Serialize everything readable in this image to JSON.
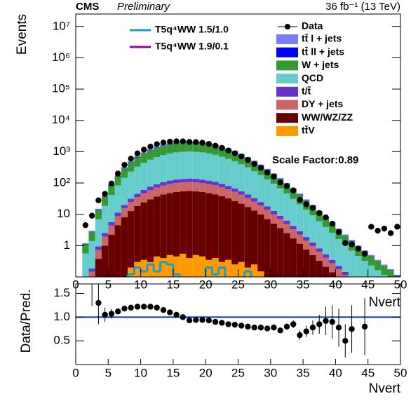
{
  "chart_data": [
    {
      "type": "stacked_histogram",
      "cms": "CMS",
      "preliminary": "Preliminary",
      "lumi": "36 fb⁻¹ (13 TeV)",
      "y_label": "Events",
      "x_label": "Nvert",
      "annotation": "Scale Factor:0.89",
      "log_scale": true,
      "bins": [
        0,
        1,
        2,
        3,
        4,
        5,
        6,
        7,
        8,
        9,
        10,
        11,
        12,
        13,
        14,
        15,
        16,
        17,
        18,
        19,
        20,
        21,
        22,
        23,
        24,
        25,
        26,
        27,
        28,
        29,
        30,
        31,
        32,
        33,
        34,
        35,
        36,
        37,
        38,
        39,
        40,
        41,
        42,
        43,
        44,
        45,
        46,
        47,
        48,
        49,
        50
      ],
      "xlim": [
        0,
        50
      ],
      "xticks": [
        0,
        5,
        10,
        15,
        20,
        25,
        30,
        35,
        40,
        45,
        50
      ],
      "ylim": [
        0.1,
        25000000
      ],
      "yticks": [
        1,
        10,
        {
          "value": 100,
          "label": "10²"
        },
        {
          "value": 1000,
          "label": "10³"
        },
        {
          "value": 10000,
          "label": "10⁴"
        },
        {
          "value": 100000,
          "label": "10⁵"
        },
        {
          "value": 1000000,
          "label": "10⁶"
        },
        {
          "value": 10000000,
          "label": "10⁷"
        }
      ],
      "series": [
        {
          "name": "tt̄ l + jets",
          "color": "#7b7bff",
          "values": [
            0,
            0.07,
            0.18,
            0.9,
            2.4,
            5.4,
            10.8,
            19.2,
            30,
            43.2,
            57,
            72,
            87,
            102,
            114,
            123,
            129,
            132,
            129,
            123,
            114,
            103,
            90,
            77,
            64,
            52,
            41,
            31,
            23,
            17,
            12.3,
            8.7,
            6,
            4.1,
            2.8,
            1.8,
            1.2,
            0.78,
            0.51,
            0.33,
            0.21,
            0.14,
            0.09,
            0.06,
            0.04,
            0.03,
            0.02,
            0.015,
            0.01,
            0.007
          ]
        },
        {
          "name": "tt̄ ll + jets",
          "color": "#0000ff",
          "values": [
            0,
            0.03,
            0.075,
            0.38,
            1,
            2.25,
            4.5,
            8,
            12.5,
            18,
            23.8,
            30,
            36.3,
            42.5,
            47.5,
            51.3,
            53.8,
            55,
            53.8,
            51.3,
            47.5,
            43,
            37.5,
            32,
            26.5,
            21.5,
            17,
            13,
            9.8,
            7.1,
            5.1,
            3.6,
            2.5,
            1.7,
            1.15,
            0.75,
            0.5,
            0.33,
            0.21,
            0.14,
            0.09,
            0.06,
            0.04,
            0.025,
            0.018,
            0.013,
            0.009,
            0.006,
            0.005,
            0.003
          ]
        },
        {
          "name": "W + jets",
          "color": "#339933",
          "values": [
            0,
            0.54,
            1.35,
            6.8,
            18,
            40,
            81,
            144,
            225,
            324,
            428,
            540,
            653,
            765,
            855,
            923,
            968,
            990,
            968,
            923,
            855,
            774,
            675,
            576,
            477,
            387,
            306,
            234,
            176,
            128,
            92,
            65,
            45,
            31,
            21,
            13.5,
            9,
            5.9,
            3.8,
            2.5,
            1.6,
            1.0,
            0.68,
            0.45,
            0.32,
            0.23,
            0.16,
            0.11,
            0.08,
            0.05
          ]
        },
        {
          "name": "QCD",
          "color": "#66cccc",
          "values": [
            0,
            0.48,
            1.2,
            6,
            16,
            36,
            72,
            128,
            200,
            288,
            380,
            480,
            580,
            680,
            760,
            820,
            860,
            880,
            860,
            820,
            760,
            688,
            600,
            512,
            424,
            344,
            272,
            208,
            156,
            114,
            82,
            58,
            40,
            27,
            18,
            12,
            8,
            5.2,
            3.4,
            2.2,
            1.4,
            0.92,
            0.6,
            0.4,
            0.28,
            0.2,
            0.14,
            0.1,
            0.07,
            0.05
          ]
        },
        {
          "name": "t/t̄",
          "color": "#6633cc",
          "values": [
            0,
            0.02,
            0.04,
            0.21,
            0.56,
            1.26,
            2.5,
            4.5,
            7,
            10,
            13.3,
            16.8,
            20.3,
            23.8,
            26.6,
            28.7,
            30.1,
            30.8,
            30.1,
            28.7,
            26.6,
            24,
            21,
            17.9,
            14.8,
            12,
            9.5,
            7.3,
            5.5,
            4,
            2.9,
            2,
            1.4,
            0.95,
            0.64,
            0.42,
            0.28,
            0.18,
            0.12,
            0.08,
            0.05,
            0.03,
            0.02,
            0.014,
            0.01,
            0.007,
            0.005,
            0.0035,
            0.0025,
            0.0017
          ]
        },
        {
          "name": "DY + jets",
          "color": "#cc6666",
          "values": [
            0,
            0.03,
            0.07,
            0.35,
            0.95,
            2.1,
            4.2,
            7.5,
            11.8,
            17,
            22.5,
            28.4,
            34.3,
            40.2,
            44.9,
            48.5,
            50.9,
            52,
            50.9,
            48.5,
            44.9,
            40.7,
            35.5,
            30.3,
            25.1,
            20.3,
            16.1,
            12.3,
            9.2,
            6.7,
            4.8,
            3.4,
            2.4,
            1.6,
            1.1,
            0.71,
            0.47,
            0.31,
            0.2,
            0.13,
            0.085,
            0.055,
            0.035,
            0.024,
            0.017,
            0.012,
            0.008,
            0.006,
            0.004,
            0.003
          ]
        },
        {
          "name": "WW/WZ/ZZ",
          "color": "#660000",
          "values": [
            0,
            0.03,
            0.075,
            0.38,
            1,
            2.25,
            4.5,
            8,
            12.5,
            18,
            23.8,
            30,
            36.3,
            42.5,
            47.5,
            51.3,
            53.8,
            55,
            53.8,
            51.3,
            47.5,
            43,
            37.5,
            32,
            26.5,
            21.5,
            17,
            13,
            9.8,
            7.1,
            5.1,
            3.6,
            2.5,
            1.7,
            1.15,
            0.75,
            0.5,
            0.33,
            0.21,
            0.14,
            0.09,
            0.06,
            0.04,
            0.025,
            0.018,
            0.013,
            0.009,
            0.006,
            0.005,
            0.003
          ]
        },
        {
          "name": "tt̄V",
          "color": "#ff9900",
          "values": [
            0,
            0,
            0,
            0,
            0,
            0,
            0,
            0,
            0.2,
            0.3,
            0.35,
            0.3,
            0.45,
            0.4,
            0.5,
            0.45,
            0.55,
            0.4,
            0.5,
            0.45,
            0.35,
            0.4,
            0.3,
            0.35,
            0.25,
            0.3,
            0.2,
            0.25,
            0.15,
            0,
            0,
            0,
            0,
            0,
            0,
            0,
            0,
            0,
            0,
            0,
            0,
            0,
            0,
            0,
            0,
            0,
            0,
            0,
            0,
            0
          ]
        }
      ],
      "overlays": [
        {
          "name": "T5q⁴WW 1.5/1.0",
          "color": "#1a9ec9",
          "values": [
            0,
            0,
            0,
            0,
            0,
            0,
            0,
            0,
            0.12,
            0.2,
            0.15,
            0.25,
            0.15,
            0.3,
            0.25,
            0.12,
            0.05,
            0.05,
            0.05,
            0.05,
            0.2,
            0.12,
            0.2,
            0.05,
            0.05,
            0.05,
            0.15,
            0,
            0,
            0,
            0,
            0,
            0,
            0,
            0,
            0,
            0,
            0,
            0,
            0,
            0,
            0,
            0,
            0,
            0,
            0,
            0,
            0,
            0,
            0
          ]
        },
        {
          "name": "T5q⁴WW 1.9/0.1",
          "color": "#990099",
          "values": [
            0,
            0,
            0,
            0,
            0,
            0,
            0,
            0,
            0.02,
            0.03,
            0.03,
            0.04,
            0.03,
            0.04,
            0.05,
            0.04,
            0.03,
            0.04,
            0.05,
            0.04,
            0.03,
            0.04,
            0.03,
            0.02,
            0.03,
            0.02,
            0.02,
            0,
            0,
            0,
            0,
            0,
            0,
            0,
            0,
            0,
            0,
            0,
            0,
            0,
            0,
            0,
            0,
            0,
            0,
            0,
            0,
            0,
            0,
            0
          ]
        }
      ],
      "data": {
        "name": "Data",
        "color": "#000000",
        "values": [
          null,
          4.5,
          9,
          28,
          45,
          96,
          200,
          380,
          600,
          880,
          1160,
          1460,
          1740,
          1960,
          2090,
          2150,
          2150,
          2050,
          2020,
          1930,
          1770,
          1550,
          1320,
          1090,
          890,
          705,
          545,
          405,
          305,
          215,
          160,
          104,
          80,
          58,
          29,
          21,
          16,
          11,
          8,
          5,
          2.7,
          1.2,
          1.1,
          0.8,
          0.55,
          4,
          3,
          3.5,
          2.5,
          4
        ]
      }
    },
    {
      "type": "ratio",
      "y_label": "Data/Pred.",
      "x_label": "Nvert",
      "xlim": [
        0,
        50
      ],
      "xticks": [
        0,
        5,
        10,
        15,
        20,
        25,
        30,
        35,
        40,
        45,
        50
      ],
      "ylim": [
        0,
        1.7
      ],
      "yticks": [
        0.5,
        {
          "value": 1,
          "label": "1.0"
        },
        1.5
      ],
      "reference_line": 1,
      "reference_color": "#0033cc",
      "values": [
        null,
        null,
        1.84,
        1.3,
        1.05,
        1.07,
        1.12,
        1.18,
        1.2,
        1.22,
        1.22,
        1.22,
        1.2,
        1.15,
        1.1,
        1.05,
        1.0,
        0.93,
        0.94,
        0.94,
        0.93,
        0.9,
        0.88,
        0.85,
        0.84,
        0.82,
        0.8,
        0.78,
        0.78,
        0.76,
        0.78,
        0.72,
        0.8,
        0.85,
        0.62,
        0.7,
        0.78,
        0.85,
        0.92,
        0.9,
        0.78,
        0.5,
        0.75,
        null,
        0.8,
        null,
        null,
        null,
        null,
        null
      ],
      "errors": [
        null,
        null,
        0.6,
        0.45,
        0.15,
        0.1,
        0.06,
        0.04,
        0.03,
        0.03,
        0.03,
        0.03,
        0.03,
        0.03,
        0.03,
        0.03,
        0.03,
        0.03,
        0.03,
        0.03,
        0.03,
        0.03,
        0.03,
        0.03,
        0.03,
        0.03,
        0.03,
        0.03,
        0.03,
        0.03,
        0.03,
        0.05,
        0.06,
        0.08,
        0.1,
        0.12,
        0.15,
        0.2,
        0.3,
        0.35,
        0.4,
        0.35,
        0.5,
        null,
        0.6,
        null,
        null,
        null,
        null,
        null
      ]
    }
  ]
}
